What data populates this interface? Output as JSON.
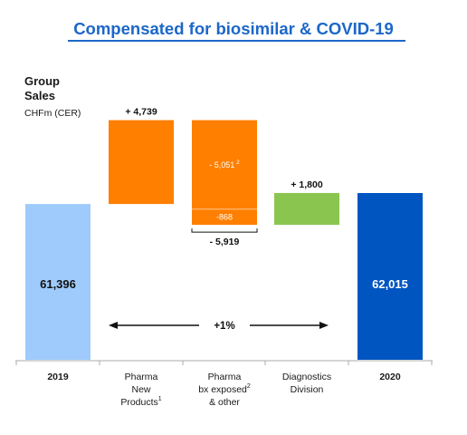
{
  "title": "Compensated for biosimilar & COVID-19",
  "ylabel": {
    "line1": "Group",
    "line2": "Sales",
    "unit": "CHFm (CER)"
  },
  "colors": {
    "title": "#1c67c8",
    "start_bar": "#9ecbfb",
    "orange": "#ff7f00",
    "green": "#8ac64f",
    "end_bar": "#0055c1",
    "axis": "#aaaaaa",
    "arrow": "#111111"
  },
  "categories": [
    {
      "lines": [
        "2019"
      ],
      "bold": true
    },
    {
      "lines": [
        "Pharma",
        "New",
        "Products"
      ],
      "sup": "1",
      "bold": false
    },
    {
      "lines": [
        "Pharma",
        "bx exposed",
        "& other"
      ],
      "sup": "2",
      "bold": false
    },
    {
      "lines": [
        "Diagnostics",
        "Division"
      ],
      "bold": false
    },
    {
      "lines": [
        "2020"
      ],
      "bold": true
    }
  ],
  "chart_data": {
    "type": "bar",
    "subtype": "waterfall",
    "categories": [
      "2019",
      "Pharma New Products",
      "Pharma bx exposed & other",
      "Diagnostics Division",
      "2020"
    ],
    "start": {
      "label": "61,396",
      "value": 61396
    },
    "end": {
      "label": "62,015",
      "value": 62015
    },
    "deltas": [
      {
        "category": "Pharma New Products",
        "label": "+ 4,739",
        "value": 4739
      },
      {
        "category": "Pharma bx exposed & other",
        "label": "- 5,919",
        "value": -5919,
        "components": [
          {
            "label": "- 5,051",
            "sup": "2",
            "value": -5051
          },
          {
            "label": "-868",
            "value": -868
          }
        ]
      },
      {
        "category": "Diagnostics Division",
        "label": "+ 1,800",
        "value": 1800
      }
    ],
    "growth_label": "+1%"
  }
}
